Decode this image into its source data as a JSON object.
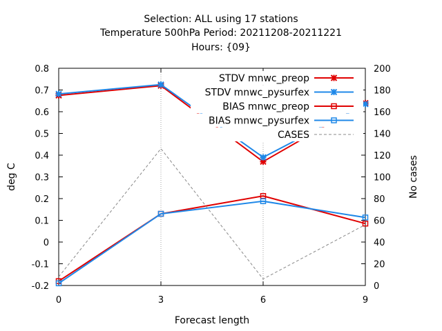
{
  "chart_data": {
    "type": "line",
    "title_lines": [
      "Selection: ALL using    17 stations",
      "Temperature 500hPa   Period: 20211208-20211221",
      "Hours: {09}"
    ],
    "xlabel": "Forecast length",
    "ylabel": "deg C",
    "y2label": "No cases",
    "x": [
      0,
      3,
      6,
      9
    ],
    "xlim": [
      0,
      9
    ],
    "ylim": [
      -0.2,
      0.8
    ],
    "y2lim": [
      0,
      200
    ],
    "x_ticks": [
      0,
      3,
      6,
      9
    ],
    "y_ticks": [
      -0.2,
      -0.1,
      0,
      0.1,
      0.2,
      0.3,
      0.4,
      0.5,
      0.6,
      0.7,
      0.8
    ],
    "y_tick_labels": [
      "-0.2",
      "-0.1",
      "0",
      "0.1",
      "0.2",
      "0.3",
      "0.4",
      "0.5",
      "0.6",
      "0.7",
      "0.8"
    ],
    "y2_ticks": [
      0,
      20,
      40,
      60,
      80,
      100,
      120,
      140,
      160,
      180,
      200
    ],
    "grid": "x-only",
    "legend_position": "top-right",
    "series": [
      {
        "name": "STDV mnwc_preop",
        "values": [
          0.675,
          0.72,
          0.37,
          0.64
        ],
        "color": "#e00000",
        "marker": "x-star",
        "axis": "left"
      },
      {
        "name": "STDV mnwc_pysurfex",
        "values": [
          0.682,
          0.725,
          0.39,
          0.635
        ],
        "color": "#1f88e8",
        "marker": "x-star",
        "axis": "left"
      },
      {
        "name": "BIAS mnwc_preop",
        "values": [
          -0.18,
          0.13,
          0.212,
          0.085
        ],
        "color": "#e00000",
        "marker": "square",
        "axis": "left"
      },
      {
        "name": "BIAS mnwc_pysurfex",
        "values": [
          -0.19,
          0.13,
          0.188,
          0.113
        ],
        "color": "#1f88e8",
        "marker": "square",
        "axis": "left"
      },
      {
        "name": "CASES",
        "values": [
          8,
          126,
          6,
          56
        ],
        "color": "#888888",
        "marker": "none",
        "dash": true,
        "axis": "right"
      }
    ]
  }
}
